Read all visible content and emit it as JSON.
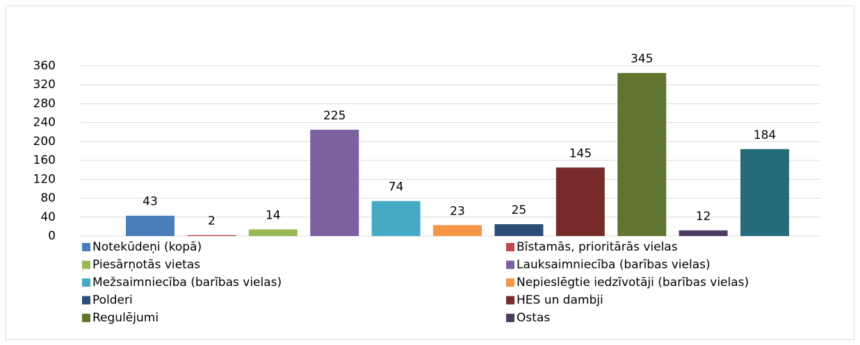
{
  "chart_data": {
    "type": "bar",
    "series": [
      {
        "name": "Notekūdeņi (kopā)",
        "color": "#4a7ebb",
        "values": [
          43
        ]
      },
      {
        "name": "Bīstamās, prioritārās  vielas",
        "color": "#be4b48",
        "values": [
          2
        ]
      },
      {
        "name": "Piesārņotās vietas",
        "color": "#98b954",
        "values": [
          14
        ]
      },
      {
        "name": "Lauksaimniecība (barības vielas)",
        "color": "#7d60a0",
        "values": [
          225
        ]
      },
      {
        "name": "Mežsaimniecība (barības vielas)",
        "color": "#46aac5",
        "values": [
          74
        ]
      },
      {
        "name": "Nepieslēgtie iedzīvotāji (barības vielas)",
        "color": "#f69545",
        "values": [
          23
        ]
      },
      {
        "name": "Polderi",
        "color": "#2c4d75",
        "values": [
          25
        ]
      },
      {
        "name": "HES un dambji",
        "color": "#772c2a",
        "values": [
          145
        ]
      },
      {
        "name": "Regulējumi",
        "color": "#5f7530",
        "values": [
          345
        ]
      },
      {
        "name": "Ostas",
        "color": "#4d3b62",
        "values": [
          12
        ]
      },
      {
        "color": "#276a7c",
        "values": [
          184
        ]
      }
    ],
    "ylim": [
      0,
      360
    ],
    "yticks": [
      0,
      40,
      80,
      120,
      160,
      200,
      240,
      280,
      320,
      360
    ],
    "grid": true
  }
}
